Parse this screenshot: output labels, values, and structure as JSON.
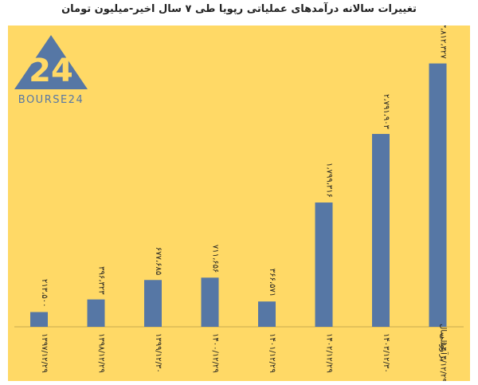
{
  "title": "تغییرات سالانه درآمدهای عملیاتی رپویا طی ۷ سال اخیر-میلیون تومان",
  "logo": {
    "text": "BOURSE24",
    "mark": "24",
    "icon": "bourse24-logo"
  },
  "colors": {
    "background": "#ffd966",
    "bar": "#5677a5",
    "text": "#222222"
  },
  "chart_data": {
    "type": "bar",
    "title": "تغییرات سالانه درآمدهای عملیاتی رپویا طی ۷ سال اخیر-میلیون تومان",
    "xlabel": "",
    "ylabel": "",
    "grid": false,
    "legend": "none",
    "ylim": [
      0,
      3900
    ],
    "categories": [
      "۱۳۹۷/۱۲/۲۹",
      "۱۳۹۸/۱۲/۲۹",
      "۱۳۹۹/۱۲/۳۰",
      "۱۴۰۰/۱۲/۲۹",
      "۱۴۰۱/۱۲/۲۹",
      "۱۴۰۲/۱۲/۲۹",
      "۱۴۰۳/۱۲/۳۰",
      "برآورد سال مالی ۱۴۰۴/۱۲/۲۹"
    ],
    "values": [
      213.5,
      396.323,
      677.685,
      711.656,
      366.571,
      1799.316,
      2791.903,
      3812.327
    ],
    "data_labels": [
      "۲۱۳،۵۰۰",
      "۳۹۶،۳۲۳",
      "۶۷۷،۶۸۵",
      "۷۱۱،۶۵۶",
      "۳۶۶،۵۷۱",
      "۱،۷۹۹،۳۱۶",
      "۲،۷۹۱،۹۰۳",
      "۳،۸۱۲،۳۲۷"
    ]
  }
}
